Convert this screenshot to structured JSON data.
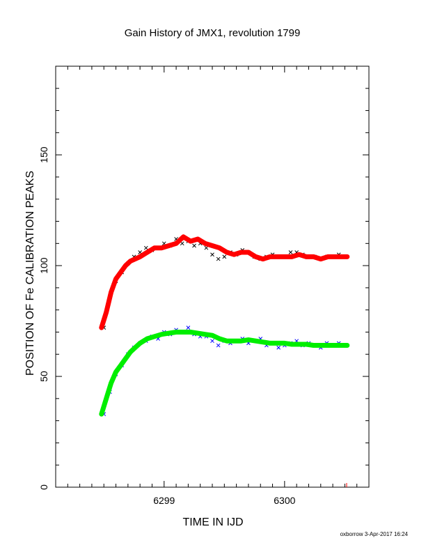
{
  "chart_data": {
    "type": "scatter",
    "title": "Gain History of JMX1, revolution 1799",
    "xlabel": "TIME IN IJD",
    "ylabel": "POSITION OF Fe CALIBRATION PEAKS",
    "xlim": [
      6298.1,
      6300.7
    ],
    "ylim": [
      0,
      190
    ],
    "x_ticks": [
      "6299",
      "6300"
    ],
    "y_ticks": [
      "0",
      "50",
      "100",
      "150"
    ],
    "grid": false,
    "colors": {
      "upper_points": "#000000",
      "upper_fit": "#ff0000",
      "lower_points": "#0000ff",
      "lower_fit": "#00ee00"
    },
    "series": [
      {
        "marker": "x",
        "kind": "points",
        "color": "#000000",
        "x": [
          6298.5,
          6298.55,
          6298.6,
          6298.65,
          6298.7,
          6298.75,
          6298.8,
          6298.85,
          6298.9,
          6298.95,
          6299.0,
          6299.05,
          6299.1,
          6299.15,
          6299.2,
          6299.25,
          6299.3,
          6299.35,
          6299.4,
          6299.45,
          6299.5,
          6299.55,
          6299.6,
          6299.65,
          6299.7,
          6299.75,
          6299.8,
          6299.85,
          6299.9,
          6299.95,
          6300.0,
          6300.05,
          6300.1,
          6300.15,
          6300.2,
          6300.25,
          6300.3,
          6300.35,
          6300.4,
          6300.45,
          6300.5
        ],
        "values": [
          72,
          86,
          93,
          97,
          101,
          104,
          106,
          108,
          107,
          108,
          110,
          109,
          112,
          110,
          111,
          109,
          110,
          108,
          105,
          103,
          104,
          106,
          105,
          107,
          106,
          104,
          103,
          104,
          105,
          104,
          104,
          106,
          106,
          105,
          104,
          104,
          103,
          104,
          104,
          105,
          104
        ]
      },
      {
        "marker": "line",
        "kind": "fit",
        "color": "#ff0000",
        "x": [
          6298.48,
          6298.52,
          6298.56,
          6298.6,
          6298.64,
          6298.68,
          6298.72,
          6298.76,
          6298.8,
          6298.86,
          6298.92,
          6298.98,
          6299.04,
          6299.1,
          6299.16,
          6299.22,
          6299.28,
          6299.34,
          6299.4,
          6299.46,
          6299.52,
          6299.58,
          6299.64,
          6299.7,
          6299.76,
          6299.82,
          6299.88,
          6299.94,
          6300.0,
          6300.06,
          6300.12,
          6300.18,
          6300.24,
          6300.3,
          6300.36,
          6300.42,
          6300.48,
          6300.52
        ],
        "values": [
          72,
          79,
          88,
          94,
          97,
          100,
          102,
          103,
          104,
          106,
          108,
          108,
          109,
          110,
          113,
          111,
          112,
          110,
          109,
          108,
          106,
          105,
          106,
          106,
          104,
          103,
          104,
          104,
          104,
          104,
          105,
          104,
          104,
          103,
          104,
          104,
          104,
          104
        ]
      },
      {
        "marker": "x",
        "kind": "points",
        "color": "#0000ff",
        "x": [
          6298.5,
          6298.55,
          6298.6,
          6298.65,
          6298.7,
          6298.75,
          6298.8,
          6298.85,
          6298.9,
          6298.95,
          6299.0,
          6299.05,
          6299.1,
          6299.15,
          6299.2,
          6299.25,
          6299.3,
          6299.35,
          6299.4,
          6299.45,
          6299.5,
          6299.55,
          6299.6,
          6299.65,
          6299.7,
          6299.75,
          6299.8,
          6299.85,
          6299.9,
          6299.95,
          6300.0,
          6300.05,
          6300.1,
          6300.15,
          6300.2,
          6300.25,
          6300.3,
          6300.35,
          6300.4,
          6300.45,
          6300.5
        ],
        "values": [
          33,
          43,
          51,
          55,
          60,
          63,
          65,
          66,
          68,
          67,
          70,
          69,
          71,
          70,
          72,
          69,
          68,
          68,
          66,
          64,
          66,
          65,
          66,
          67,
          65,
          66,
          67,
          64,
          65,
          63,
          64,
          65,
          66,
          64,
          65,
          64,
          63,
          65,
          64,
          65,
          64
        ]
      },
      {
        "marker": "line",
        "kind": "fit",
        "color": "#00ee00",
        "x": [
          6298.48,
          6298.52,
          6298.56,
          6298.6,
          6298.64,
          6298.68,
          6298.72,
          6298.76,
          6298.8,
          6298.86,
          6298.92,
          6298.98,
          6299.04,
          6299.1,
          6299.16,
          6299.22,
          6299.28,
          6299.34,
          6299.4,
          6299.46,
          6299.52,
          6299.58,
          6299.64,
          6299.7,
          6299.76,
          6299.82,
          6299.88,
          6299.94,
          6300.0,
          6300.06,
          6300.12,
          6300.18,
          6300.24,
          6300.3,
          6300.36,
          6300.42,
          6300.48,
          6300.52
        ],
        "values": [
          33,
          40,
          47,
          52,
          55,
          58,
          61,
          63,
          65,
          67,
          68,
          69,
          69.5,
          70,
          70,
          70,
          69.5,
          69,
          68.5,
          67,
          66,
          66,
          66,
          66.5,
          66,
          65.5,
          65,
          65,
          65,
          64.5,
          64.5,
          64.5,
          64,
          64,
          64,
          64,
          64,
          64
        ]
      }
    ]
  },
  "footer": {
    "credit": "oxborrow  3-Apr-2017 16:24"
  }
}
